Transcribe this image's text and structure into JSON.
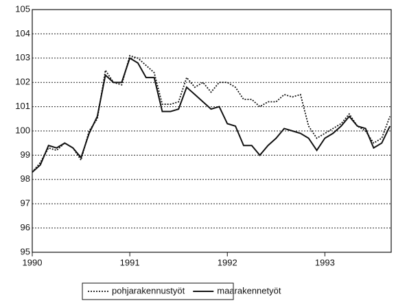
{
  "chart_data": {
    "type": "line",
    "x": [
      1990,
      1990.083,
      1990.167,
      1990.25,
      1990.333,
      1990.417,
      1990.5,
      1990.583,
      1990.667,
      1990.75,
      1990.833,
      1990.917,
      1991,
      1991.083,
      1991.167,
      1991.25,
      1991.333,
      1991.417,
      1991.5,
      1991.583,
      1991.667,
      1991.75,
      1991.833,
      1991.917,
      1992,
      1992.083,
      1992.167,
      1992.25,
      1992.333,
      1992.417,
      1992.5,
      1992.583,
      1992.667,
      1992.75,
      1992.833,
      1992.917,
      1993,
      1993.083,
      1993.167,
      1993.25,
      1993.333,
      1993.417,
      1993.5,
      1993.583,
      1993.667
    ],
    "series": [
      {
        "name": "pohjarakennustyöt",
        "color": "#111111",
        "dash": "dotted",
        "values": [
          98.3,
          98.7,
          99.3,
          99.2,
          99.5,
          99.3,
          98.8,
          100.0,
          100.5,
          102.5,
          102.0,
          101.9,
          103.1,
          103.0,
          102.7,
          102.4,
          101.1,
          101.1,
          101.2,
          102.2,
          101.8,
          102.0,
          101.6,
          102.0,
          102.0,
          101.8,
          101.3,
          101.3,
          101.0,
          101.2,
          101.2,
          101.5,
          101.4,
          101.5,
          100.2,
          99.7,
          99.9,
          100.1,
          100.3,
          100.7,
          100.2,
          100.0,
          99.5,
          99.7,
          100.6
        ]
      },
      {
        "name": "maarakennetyöt",
        "color": "#111111",
        "dash": "solid",
        "values": [
          98.3,
          98.6,
          99.4,
          99.3,
          99.5,
          99.3,
          98.9,
          99.9,
          100.6,
          102.3,
          102.0,
          102.0,
          103.0,
          102.8,
          102.2,
          102.2,
          100.8,
          100.8,
          100.9,
          101.8,
          101.5,
          101.2,
          100.9,
          101.0,
          100.3,
          100.2,
          99.4,
          99.4,
          99.0,
          99.4,
          99.7,
          100.1,
          100.0,
          99.9,
          99.7,
          99.2,
          99.7,
          99.9,
          100.2,
          100.6,
          100.2,
          100.1,
          99.3,
          99.5,
          100.2
        ]
      }
    ],
    "xlim": [
      1990,
      1993.68
    ],
    "xticks": [
      1990,
      1991,
      1992,
      1993
    ],
    "ylim": [
      95,
      105
    ],
    "yticks": [
      95,
      96,
      97,
      98,
      99,
      100,
      101,
      102,
      103,
      104,
      105
    ],
    "grid": true,
    "legend": "bottom"
  }
}
